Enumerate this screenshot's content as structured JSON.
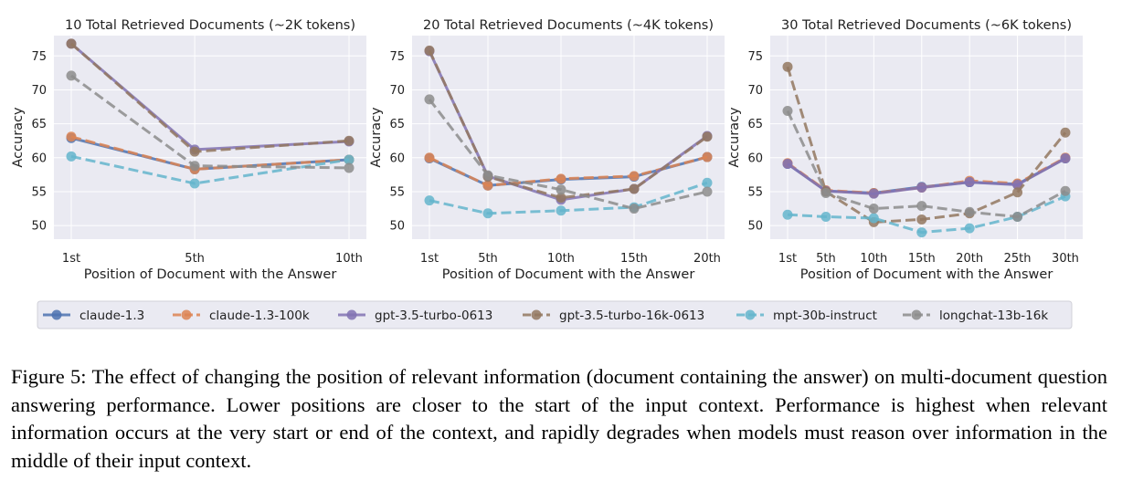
{
  "chart_data": [
    {
      "type": "line",
      "title": "10 Total Retrieved Documents (~2K tokens)",
      "xlabel": "Position of Document with the Answer",
      "ylabel": "Accuracy",
      "x": [
        1,
        5,
        10
      ],
      "xtick_labels": [
        "1st",
        "5th",
        "10th"
      ],
      "ylim": [
        48,
        78
      ],
      "yticks": [
        50,
        55,
        60,
        65,
        70,
        75
      ],
      "grid": true,
      "series": [
        {
          "name": "claude-1.3",
          "values": [
            62.9,
            58.3,
            59.7
          ]
        },
        {
          "name": "claude-1.3-100k",
          "values": [
            63.1,
            58.3,
            59.7
          ]
        },
        {
          "name": "gpt-3.5-turbo-0613",
          "values": [
            76.8,
            61.2,
            62.4
          ]
        },
        {
          "name": "gpt-3.5-turbo-16k-0613",
          "values": [
            76.8,
            60.9,
            62.5
          ]
        },
        {
          "name": "mpt-30b-instruct",
          "values": [
            60.2,
            56.2,
            59.7
          ]
        },
        {
          "name": "longchat-13b-16k",
          "values": [
            72.1,
            58.8,
            58.5
          ]
        }
      ]
    },
    {
      "type": "line",
      "title": "20 Total Retrieved Documents (~4K tokens)",
      "xlabel": "Position of Document with the Answer",
      "ylabel": "Accuracy",
      "x": [
        1,
        5,
        10,
        15,
        20
      ],
      "xtick_labels": [
        "1st",
        "5th",
        "10th",
        "15th",
        "20th"
      ],
      "ylim": [
        48,
        78
      ],
      "yticks": [
        50,
        55,
        60,
        65,
        70,
        75
      ],
      "grid": true,
      "series": [
        {
          "name": "claude-1.3",
          "values": [
            59.9,
            55.9,
            56.8,
            57.2,
            60.1
          ]
        },
        {
          "name": "claude-1.3-100k",
          "values": [
            60.0,
            55.9,
            56.9,
            57.3,
            60.1
          ]
        },
        {
          "name": "gpt-3.5-turbo-0613",
          "values": [
            75.7,
            57.3,
            53.8,
            55.4,
            63.2
          ]
        },
        {
          "name": "gpt-3.5-turbo-16k-0613",
          "values": [
            75.8,
            57.2,
            54.1,
            55.4,
            63.1
          ]
        },
        {
          "name": "mpt-30b-instruct",
          "values": [
            53.7,
            51.8,
            52.2,
            52.7,
            56.3
          ]
        },
        {
          "name": "longchat-13b-16k",
          "values": [
            68.6,
            57.4,
            55.3,
            52.5,
            55.0
          ]
        }
      ]
    },
    {
      "type": "line",
      "title": "30 Total Retrieved Documents (~6K tokens)",
      "xlabel": "Position of Document with the Answer",
      "ylabel": "Accuracy",
      "x": [
        1,
        5,
        10,
        15,
        20,
        25,
        30
      ],
      "xtick_labels": [
        "1st",
        "5th",
        "10th",
        "15th",
        "20th",
        "25th",
        "30th"
      ],
      "ylim": [
        48,
        78
      ],
      "yticks": [
        50,
        55,
        60,
        65,
        70,
        75
      ],
      "grid": true,
      "series": [
        {
          "name": "claude-1.3",
          "values": [
            59.1,
            55.1,
            54.8,
            55.7,
            56.4,
            56.1,
            59.9
          ]
        },
        {
          "name": "claude-1.3-100k",
          "values": [
            59.2,
            55.2,
            54.8,
            55.6,
            56.6,
            56.2,
            60.0
          ]
        },
        {
          "name": "gpt-3.5-turbo-0613",
          "values": [
            59.1,
            55.1,
            54.7,
            55.6,
            56.4,
            56.0,
            59.9
          ]
        },
        {
          "name": "gpt-3.5-turbo-16k-0613",
          "values": [
            73.4,
            55.0,
            50.5,
            50.9,
            51.8,
            54.9,
            63.7
          ]
        },
        {
          "name": "mpt-30b-instruct",
          "values": [
            51.6,
            51.3,
            51.1,
            49.0,
            49.6,
            51.3,
            54.3
          ]
        },
        {
          "name": "longchat-13b-16k",
          "values": [
            66.9,
            54.8,
            52.5,
            52.9,
            52.0,
            51.3,
            55.1
          ]
        }
      ]
    }
  ],
  "series_styles": [
    {
      "name": "claude-1.3",
      "color": "#4c72b0",
      "dashed": false
    },
    {
      "name": "claude-1.3-100k",
      "color": "#dd8452",
      "dashed": true
    },
    {
      "name": "gpt-3.5-turbo-0613",
      "color": "#8172b3",
      "dashed": false
    },
    {
      "name": "gpt-3.5-turbo-16k-0613",
      "color": "#937860",
      "dashed": true
    },
    {
      "name": "mpt-30b-instruct",
      "color": "#64b5cd",
      "dashed": true
    },
    {
      "name": "longchat-13b-16k",
      "color": "#8c8c8c",
      "dashed": true
    }
  ],
  "plot_background": "#eaeaf2",
  "caption": "Figure 5: The effect of changing the position of relevant information (document containing the answer) on multi-document question answering performance. Lower positions are closer to the start of the input context. Performance is highest when relevant information occurs at the very start or end of the context, and rapidly degrades when models must reason over information in the middle of their input context."
}
